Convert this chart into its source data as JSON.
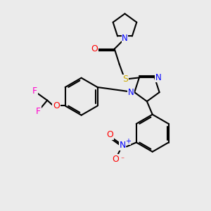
{
  "bg_color": "#ebebeb",
  "atom_colors": {
    "N": "#0000ff",
    "O": "#ff0000",
    "S": "#ccaa00",
    "F": "#ff00cc"
  },
  "bond_color": "#000000",
  "figsize": [
    3.0,
    3.0
  ],
  "dpi": 100
}
